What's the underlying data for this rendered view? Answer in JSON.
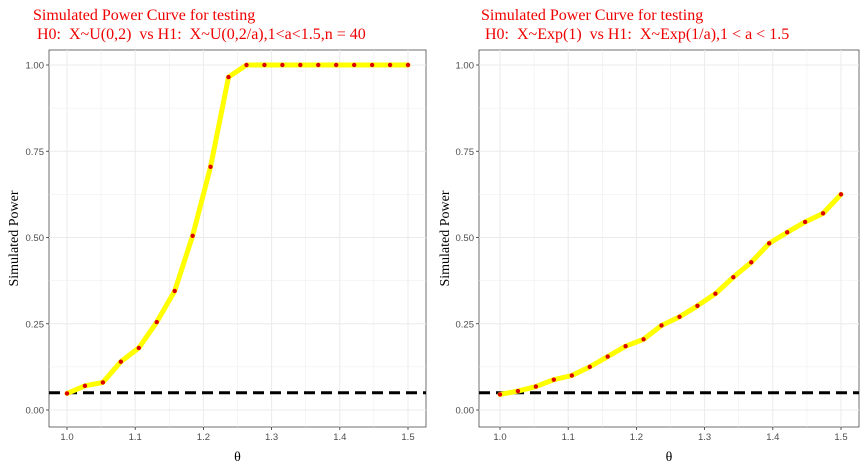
{
  "chart_data": [
    {
      "type": "line",
      "title_line1": "Simulated Power Curve for testing",
      "title_line2": " H0:  X~U(0,2)  vs H1:  X~U(0,2/a),1<a<1.5,n = 40",
      "xlabel": "θ",
      "ylabel": "Simulated Power",
      "xlim": [
        1.0,
        1.5
      ],
      "ylim": [
        0.0,
        1.0
      ],
      "xticks": [
        "1.0",
        "1.1",
        "1.2",
        "1.3",
        "1.4",
        "1.5"
      ],
      "yticks": [
        "0.00",
        "0.25",
        "0.50",
        "0.75",
        "1.00"
      ],
      "x": [
        1.0,
        1.0263,
        1.0526,
        1.0789,
        1.1053,
        1.1316,
        1.1579,
        1.1842,
        1.2105,
        1.2368,
        1.2632,
        1.2895,
        1.3158,
        1.3421,
        1.3684,
        1.3947,
        1.4211,
        1.4474,
        1.4737,
        1.5
      ],
      "y": [
        0.048,
        0.07,
        0.08,
        0.14,
        0.18,
        0.255,
        0.345,
        0.505,
        0.705,
        0.965,
        1.0,
        1.0,
        1.0,
        1.0,
        1.0,
        1.0,
        1.0,
        1.0,
        1.0,
        1.0
      ],
      "reference_line": 0.05,
      "grid": true,
      "colors": {
        "line": "#ffff00",
        "points": "#dd0000",
        "reference": "#000000",
        "title": "#ee0000",
        "grid": "#ebebeb",
        "panel_border": "#333333"
      }
    },
    {
      "type": "line",
      "title_line1": "Simulated Power Curve for testing",
      "title_line2": " H0:  X~Exp(1)  vs H1:  X~Exp(1/a),1 < a < 1.5",
      "xlabel": "θ",
      "ylabel": "Simulated Power",
      "xlim": [
        1.0,
        1.5
      ],
      "ylim": [
        0.0,
        1.0
      ],
      "xticks": [
        "1.0",
        "1.1",
        "1.2",
        "1.3",
        "1.4",
        "1.5"
      ],
      "yticks": [
        "0.00",
        "0.25",
        "0.50",
        "0.75",
        "1.00"
      ],
      "x": [
        1.0,
        1.0263,
        1.0526,
        1.0789,
        1.1053,
        1.1316,
        1.1579,
        1.1842,
        1.2105,
        1.2368,
        1.2632,
        1.2895,
        1.3158,
        1.3421,
        1.3684,
        1.3947,
        1.4211,
        1.4474,
        1.4737,
        1.5
      ],
      "y": [
        0.045,
        0.055,
        0.068,
        0.088,
        0.1,
        0.125,
        0.155,
        0.185,
        0.205,
        0.245,
        0.27,
        0.302,
        0.337,
        0.385,
        0.428,
        0.483,
        0.515,
        0.545,
        0.57,
        0.625
      ],
      "reference_line": 0.05,
      "grid": true,
      "colors": {
        "line": "#ffff00",
        "points": "#dd0000",
        "reference": "#000000",
        "title": "#ee0000",
        "grid": "#ebebeb",
        "panel_border": "#333333"
      }
    }
  ]
}
